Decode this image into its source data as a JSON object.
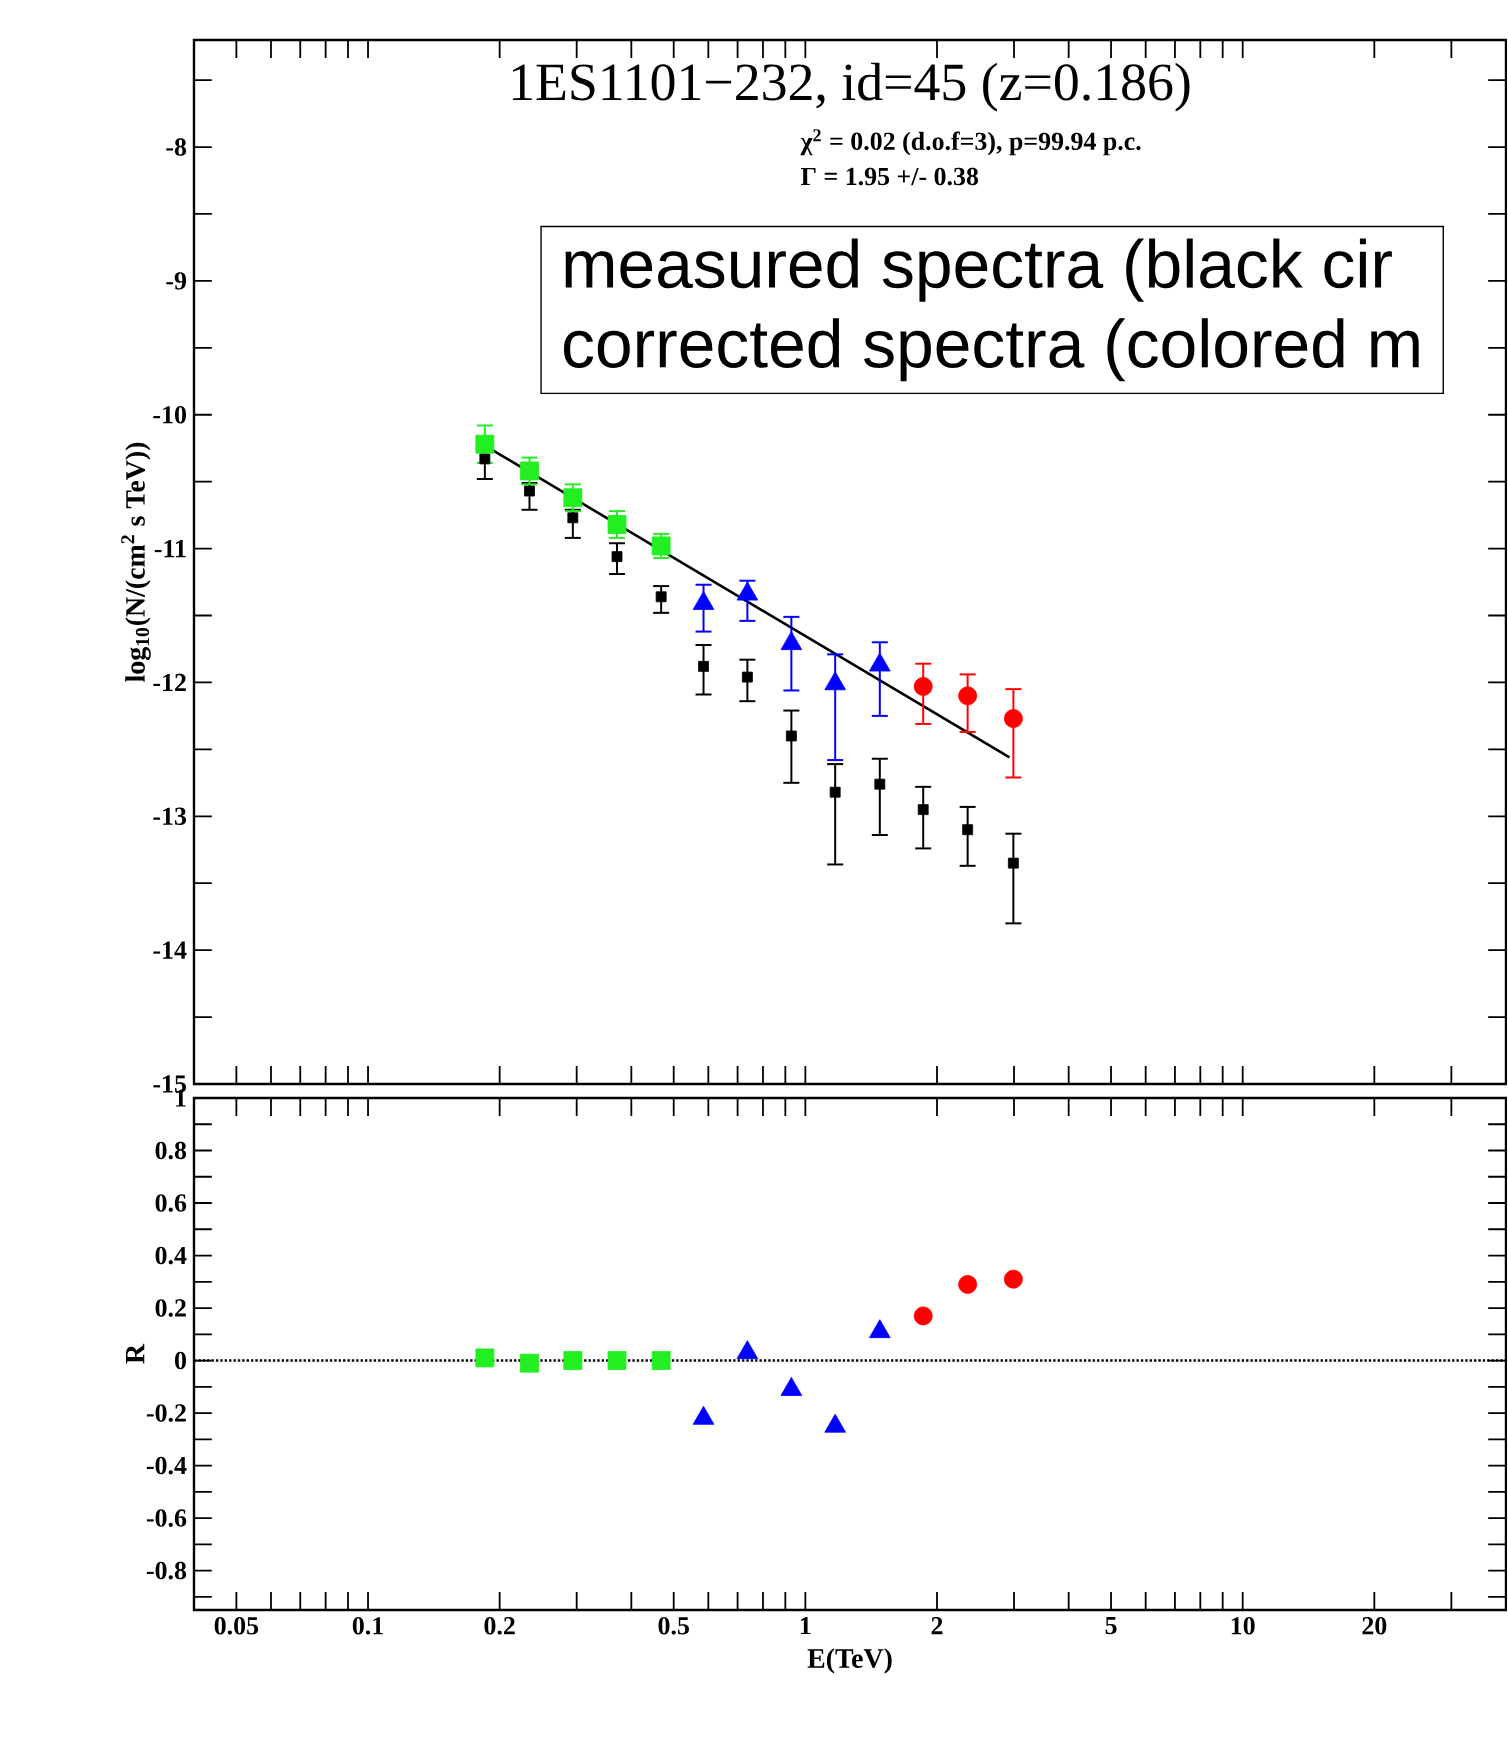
{
  "chart_data": [
    {
      "type": "scatter",
      "title": "1ES1101−232, id=45 (z=0.186)",
      "ylabel": "log$_{10}$(N/(cm$^{2}$ s TeV))",
      "annotations": [
        "χ$^{2}$ = 0.02  (d.o.f=3), p=99.94 p.c.",
        "Γ = 1.95 +/- 0.38",
        "measured spectra (black cir",
        "corrected spectra (colored m"
      ],
      "log": "x",
      "grid": false,
      "tick_labels": "y",
      "xlim": [
        0.04,
        40
      ],
      "ylim": [
        -15,
        -7.2
      ],
      "xticks": [
        {
          "value": 0.05,
          "label": null
        },
        {
          "value": 0.06,
          "label": null
        },
        {
          "value": 0.07,
          "label": null
        },
        {
          "value": 0.08,
          "label": null
        },
        {
          "value": 0.09,
          "label": null
        },
        {
          "value": 0.1,
          "label": null
        },
        {
          "value": 0.2,
          "label": null
        },
        {
          "value": 0.3,
          "label": null
        },
        {
          "value": 0.4,
          "label": null
        },
        {
          "value": 0.5,
          "label": null
        },
        {
          "value": 0.6,
          "label": null
        },
        {
          "value": 0.7,
          "label": null
        },
        {
          "value": 0.8,
          "label": null
        },
        {
          "value": 0.9,
          "label": null
        },
        {
          "value": 1,
          "label": null
        },
        {
          "value": 2,
          "label": null
        },
        {
          "value": 3,
          "label": null
        },
        {
          "value": 4,
          "label": null
        },
        {
          "value": 5,
          "label": null
        },
        {
          "value": 6,
          "label": null
        },
        {
          "value": 7,
          "label": null
        },
        {
          "value": 8,
          "label": null
        },
        {
          "value": 9,
          "label": null
        },
        {
          "value": 10,
          "label": null
        },
        {
          "value": 20,
          "label": null
        },
        {
          "value": 30,
          "label": null
        }
      ],
      "yticks": [
        -15,
        {
          "value": -14.5,
          "label": null
        },
        -14,
        {
          "value": -13.5,
          "label": null
        },
        -13,
        {
          "value": -12.5,
          "label": null
        },
        -12,
        {
          "value": -11.5,
          "label": null
        },
        -11,
        {
          "value": -10.5,
          "label": null
        },
        -10,
        {
          "value": -9.5,
          "label": null
        },
        -9,
        {
          "value": -8.5,
          "label": null
        },
        -8,
        {
          "value": -7.5,
          "label": null
        }
      ],
      "series": [
        {
          "color": "#000000",
          "marker": "square",
          "x": [
            0.185,
            0.234,
            0.294,
            0.371,
            0.468,
            0.585,
            0.737,
            0.929,
            1.17,
            1.48,
            1.86,
            2.35,
            2.99
          ],
          "values": [
            -10.33,
            -10.57,
            -10.77,
            -11.06,
            -11.36,
            -11.88,
            -11.96,
            -12.4,
            -12.82,
            -12.76,
            -12.95,
            -13.1,
            -13.35
          ],
          "errors": [
            [
              -10.48,
              -10.26
            ],
            [
              -10.71,
              -10.51
            ],
            [
              -10.92,
              -10.71
            ],
            [
              -11.19,
              -10.96
            ],
            [
              -11.48,
              -11.28
            ],
            [
              -12.09,
              -11.72
            ],
            [
              -12.14,
              -11.83
            ],
            [
              -12.75,
              -12.21
            ],
            [
              -13.36,
              -12.61
            ],
            [
              -13.14,
              -12.57
            ],
            [
              -13.24,
              -12.78
            ],
            [
              -13.37,
              -12.93
            ],
            [
              -13.8,
              -13.13
            ]
          ]
        },
        {
          "type": "line",
          "color": "#000000",
          "marker": "none",
          "line_style": "solid",
          "x": [
            0.185,
            2.93
          ],
          "values": [
            -10.23,
            -12.56
          ]
        },
        {
          "color": "#22ee22",
          "marker": "square",
          "x": [
            0.185,
            0.234,
            0.294,
            0.371,
            0.468
          ],
          "values": [
            -10.22,
            -10.42,
            -10.62,
            -10.82,
            -10.98
          ],
          "errors": [
            [
              -10.36,
              -10.08
            ],
            [
              -10.52,
              -10.32
            ],
            [
              -10.72,
              -10.52
            ],
            [
              -10.92,
              -10.72
            ],
            [
              -11.07,
              -10.89
            ]
          ]
        },
        {
          "color": "#0000ff",
          "marker": "triangle",
          "x": [
            0.585,
            0.737,
            0.929,
            1.17,
            1.48
          ],
          "values": [
            -11.41,
            -11.34,
            -11.71,
            -12.01,
            -11.87
          ],
          "errors": [
            [
              -11.62,
              -11.27
            ],
            [
              -11.54,
              -11.24
            ],
            [
              -12.06,
              -11.51
            ],
            [
              -12.58,
              -11.79
            ],
            [
              -12.25,
              -11.7
            ]
          ]
        },
        {
          "color": "#ff0000",
          "marker": "circle",
          "x": [
            1.86,
            2.35,
            2.99
          ],
          "values": [
            -12.03,
            -12.1,
            -12.27
          ],
          "errors": [
            [
              -12.31,
              -11.86
            ],
            [
              -12.37,
              -11.94
            ],
            [
              -12.71,
              -12.05
            ]
          ]
        }
      ]
    },
    {
      "type": "scatter",
      "xlabel": "E(TeV)",
      "ylabel": "R",
      "log": "x",
      "grid": false,
      "xlim": [
        0.04,
        40
      ],
      "ylim": [
        -0.95,
        1
      ],
      "xticks": [
        {
          "value": 0.05,
          "label": "0.05"
        },
        {
          "value": 0.06,
          "label": null
        },
        {
          "value": 0.07,
          "label": null
        },
        {
          "value": 0.08,
          "label": null
        },
        {
          "value": 0.09,
          "label": null
        },
        {
          "value": 0.1,
          "label": "0.1"
        },
        {
          "value": 0.2,
          "label": "0.2"
        },
        {
          "value": 0.3,
          "label": null
        },
        {
          "value": 0.4,
          "label": null
        },
        {
          "value": 0.5,
          "label": "0.5"
        },
        {
          "value": 0.6,
          "label": null
        },
        {
          "value": 0.7,
          "label": null
        },
        {
          "value": 0.8,
          "label": null
        },
        {
          "value": 0.9,
          "label": null
        },
        {
          "value": 1,
          "label": "1"
        },
        {
          "value": 2,
          "label": "2"
        },
        {
          "value": 3,
          "label": null
        },
        {
          "value": 4,
          "label": null
        },
        {
          "value": 5,
          "label": "5"
        },
        {
          "value": 6,
          "label": null
        },
        {
          "value": 7,
          "label": null
        },
        {
          "value": 8,
          "label": null
        },
        {
          "value": 9,
          "label": null
        },
        {
          "value": 10,
          "label": "10"
        },
        {
          "value": 20,
          "label": "20"
        },
        {
          "value": 30,
          "label": null
        }
      ],
      "yticks": [
        {
          "value": -0.9,
          "label": null
        },
        -0.8,
        {
          "value": -0.7,
          "label": null
        },
        -0.6,
        {
          "value": -0.5,
          "label": null
        },
        -0.4,
        {
          "value": -0.3,
          "label": null
        },
        -0.2,
        {
          "value": -0.1,
          "label": null
        },
        0,
        {
          "value": 0.1,
          "label": null
        },
        0.2,
        {
          "value": 0.3,
          "label": null
        },
        0.4,
        {
          "value": 0.5,
          "label": null
        },
        0.6,
        {
          "value": 0.7,
          "label": null
        },
        0.8,
        {
          "value": 0.9,
          "label": null
        },
        1
      ],
      "ref_lines": [
        {
          "axis": "y",
          "value": 0,
          "color": "#000000",
          "line_style": "dotted"
        }
      ],
      "series": [
        {
          "color": "#22ee22",
          "marker": "square",
          "x": [
            0.185,
            0.234,
            0.294,
            0.371,
            0.468
          ],
          "values": [
            0.01,
            -0.01,
            0,
            0,
            0
          ]
        },
        {
          "color": "#0000ff",
          "marker": "triangle",
          "x": [
            0.585,
            0.737,
            0.929,
            1.17,
            1.48
          ],
          "values": [
            -0.22,
            0.03,
            -0.11,
            -0.25,
            0.11
          ]
        },
        {
          "color": "#ff0000",
          "marker": "circle",
          "x": [
            1.86,
            2.35,
            2.99
          ],
          "values": [
            0.17,
            0.29,
            0.31
          ]
        }
      ]
    }
  ]
}
